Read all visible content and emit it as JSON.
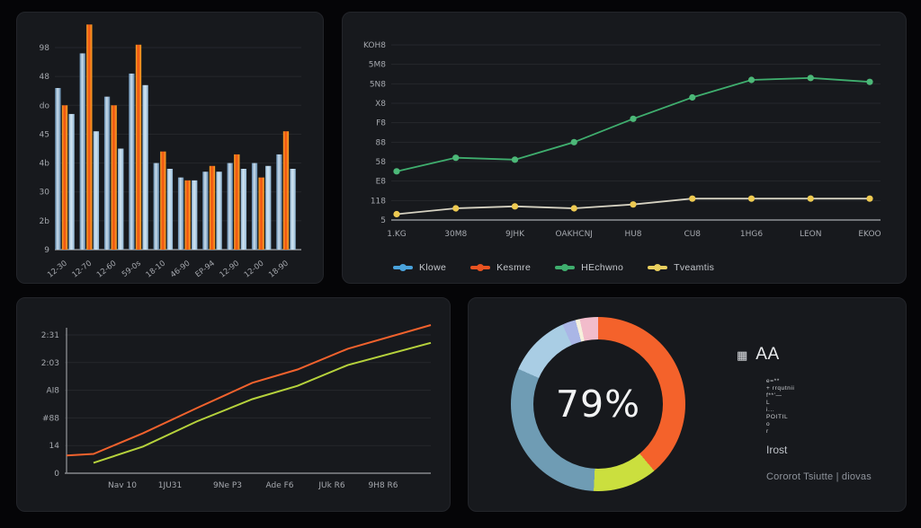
{
  "chart_data": [
    {
      "type": "bar",
      "title": "",
      "grid": "horizontal",
      "legend_position": "none",
      "ylim": [
        0,
        70
      ],
      "y_tick_labels_top_to_bottom": [
        "98",
        "48",
        "do",
        "45",
        "4b",
        "30",
        "2b",
        "9"
      ],
      "categories": [
        "12-30",
        "12-70",
        "12-60",
        "59-0s",
        "18-10",
        "46-90",
        "EP-94",
        "12-90",
        "12-00",
        "18-90"
      ],
      "series": [
        {
          "name": "steel-blue",
          "gradient": [
            "#5f88ac",
            "#cadded"
          ],
          "values": [
            56,
            68,
            53,
            61,
            30,
            25,
            27,
            30,
            30,
            33
          ]
        },
        {
          "name": "orange",
          "gradient": [
            "#f9a825",
            "#ef4d12"
          ],
          "values": [
            50,
            78,
            50,
            71,
            34,
            24,
            29,
            33,
            25,
            41
          ]
        },
        {
          "name": "light-blue",
          "gradient": [
            "#8fb6d4",
            "#d3e5f2"
          ],
          "values": [
            47,
            41,
            35,
            57,
            28,
            24,
            27,
            28,
            29,
            28
          ]
        }
      ],
      "axis_color": "#8f9296",
      "grid_color": "#26282d"
    },
    {
      "type": "line",
      "title": "",
      "grid": "horizontal",
      "legend_position": "bottom-left",
      "ylim": [
        0,
        90
      ],
      "y_tick_labels_top_to_bottom": [
        "KOH8",
        "5M8",
        "5N8",
        "X8",
        "F8",
        "88",
        "58",
        "E8",
        "118",
        "5"
      ],
      "categories": [
        "1.KG",
        "30M8",
        "9JHK",
        "OAKHCNJ",
        "HU8",
        "CU8",
        "1HG6",
        "LEON",
        "EKOO"
      ],
      "series": [
        {
          "name": "green",
          "line_color": "#3fae6e",
          "marker_color": "#4cb878",
          "markers": true,
          "values": [
            25,
            32,
            31,
            40,
            52,
            63,
            72,
            73,
            71
          ]
        },
        {
          "name": "yellow",
          "line_color": "#d6d2c2",
          "marker_color": "#eeca52",
          "markers": true,
          "values": [
            3,
            6,
            7,
            6,
            8,
            11,
            11,
            11,
            11
          ]
        }
      ],
      "legend": [
        {
          "label": "Klowe",
          "color": "#4aa3dc"
        },
        {
          "label": "Kesmre",
          "color": "#e85321"
        },
        {
          "label": "HEchwno",
          "color": "#3fae6e"
        },
        {
          "label": "Tveamtis",
          "color": "#e9cf5e"
        }
      ],
      "axis_color": "#8f9296",
      "grid_color": "#26282d"
    },
    {
      "type": "line",
      "title": "",
      "grid": "horizontal",
      "legend_position": "none",
      "ylim": [
        0,
        100
      ],
      "y_tick_labels_top_to_bottom": [
        "2:31",
        "2:03",
        "AI8",
        "#88",
        "14",
        "0"
      ],
      "categories": [
        "Nav 10",
        "1JU31",
        "9Ne P3",
        "Ade F6",
        "JUk R6",
        "9H8 R6"
      ],
      "series": [
        {
          "name": "orange",
          "line_color": "#f2622d",
          "markers": false,
          "x_fracs": [
            0,
            0.074,
            0.21,
            0.358,
            0.51,
            0.634,
            0.772,
            1
          ],
          "values": [
            12,
            13,
            27,
            44,
            61,
            70,
            84,
            100
          ]
        },
        {
          "name": "yellow-green",
          "line_color": "#b6d23c",
          "markers": false,
          "x_fracs": [
            0.074,
            0.21,
            0.358,
            0.51,
            0.634,
            0.772,
            1
          ],
          "values": [
            7,
            18,
            35,
            50,
            59,
            73,
            88
          ]
        }
      ],
      "axis_color": "#85888c",
      "grid_color": "#26282d"
    },
    {
      "type": "donut",
      "center_label": "79%",
      "segments": [
        {
          "name": "orange",
          "color": "#f4622b",
          "pct": 38.9
        },
        {
          "name": "yellow-green",
          "color": "#cbdf3e",
          "pct": 11.9
        },
        {
          "name": "steel-blue",
          "color": "#6f9cb4",
          "pct": 30.8
        },
        {
          "name": "light-blue",
          "color": "#a9cde4",
          "pct": 11.7
        },
        {
          "name": "lavender",
          "color": "#aab6e6",
          "pct": 2.5
        },
        {
          "name": "cream",
          "color": "#f6f1dd",
          "pct": 0.8
        },
        {
          "name": "pink",
          "color": "#f2bccb",
          "pct": 3.4
        }
      ]
    }
  ],
  "donut_side": {
    "heading": "AA",
    "grid_icon": "▦",
    "list": [
      "e=**",
      "+ rrqutnii",
      "f**'—",
      "L",
      "i...",
      "POITIL",
      "o",
      "r"
    ],
    "label": "Irost",
    "footer": "Cororot Tsiutte | diovas"
  }
}
